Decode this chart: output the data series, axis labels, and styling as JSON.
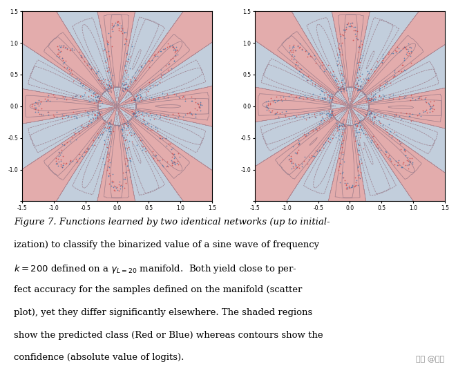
{
  "fig_width": 6.76,
  "fig_height": 5.4,
  "dpi": 100,
  "xlim": [
    -1.5,
    1.5
  ],
  "ylim": [
    -1.5,
    1.5
  ],
  "xticks": [
    -1.5,
    -1.0,
    -0.5,
    0.0,
    0.5,
    1.0,
    1.5
  ],
  "yticks": [
    -1.5,
    -1.0,
    -0.5,
    0.0,
    0.5,
    1.0,
    1.5
  ],
  "xtick_labels": [
    "-1.5",
    "-1.0",
    "-0.5",
    "0.0",
    "0.5",
    "1.0",
    "1.5"
  ],
  "ytick_labels": [
    "",
    "-1.0",
    "-0.5",
    "0.0",
    "0.5",
    "1.0",
    "1.5"
  ],
  "background_color": "#ffffff",
  "red_color": "#d88080",
  "blue_color": "#a0b8d0",
  "contour_color_red": "#c07070",
  "contour_color_blue": "#6688aa",
  "scatter_red": "#cc4444",
  "scatter_blue": "#4477aa",
  "freq_k": 200,
  "manifold_L": 20,
  "n_petals": 16,
  "caption_line1": "Figure 7. Functions learned by two identical networks (up to initial-",
  "caption_line2": "ization) to classify the binarized value of a sine wave of frequency",
  "caption_line4": "fect accuracy for the samples defined on the manifold (scatter",
  "caption_line5": "plot), yet they differ significantly elsewhere. The shaded regions",
  "caption_line6": "show the predicted class (Red or Blue) whereas contours show the",
  "caption_line7": "confidence (absolute value of logits).",
  "watermark": "知乎 @若羽"
}
